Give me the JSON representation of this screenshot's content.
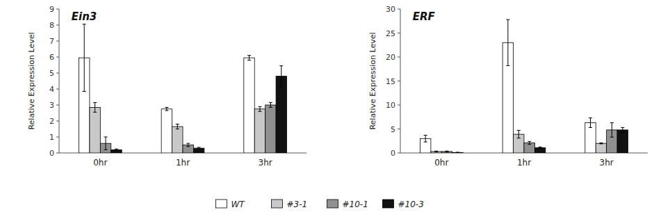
{
  "chart_data": [
    {
      "type": "bar",
      "title": "Ein3",
      "y_label": "Relative Expression Level",
      "categories": [
        "0hr",
        "1hr",
        "3hr"
      ],
      "series": [
        {
          "name": "WT",
          "color": "#ffffff",
          "values": [
            5.95,
            2.75,
            5.95
          ],
          "errors": [
            2.1,
            0.1,
            0.15
          ]
        },
        {
          "name": "#3-1",
          "color": "#c8c8c8",
          "values": [
            2.85,
            1.65,
            2.75
          ],
          "errors": [
            0.3,
            0.15,
            0.15
          ]
        },
        {
          "name": "#10-1",
          "color": "#909090",
          "values": [
            0.6,
            0.5,
            3.0
          ],
          "errors": [
            0.4,
            0.1,
            0.15
          ]
        },
        {
          "name": "#10-3",
          "color": "#111111",
          "values": [
            0.2,
            0.3,
            4.8
          ],
          "errors": [
            0.05,
            0.05,
            0.65
          ]
        }
      ],
      "ylim": [
        0,
        9
      ],
      "yticks": [
        0,
        1,
        2,
        3,
        4,
        5,
        6,
        7,
        8,
        9
      ],
      "grid": false,
      "legend": "bottom"
    },
    {
      "type": "bar",
      "title": "ERF",
      "y_label": "Relative Expression Level",
      "categories": [
        "0hr",
        "1hr",
        "3hr"
      ],
      "series": [
        {
          "name": "WT",
          "color": "#ffffff",
          "values": [
            3.0,
            23.0,
            6.3
          ],
          "errors": [
            0.7,
            4.8,
            1.0
          ]
        },
        {
          "name": "#3-1",
          "color": "#c8c8c8",
          "values": [
            0.3,
            3.9,
            2.0
          ],
          "errors": [
            0.1,
            0.8,
            0.1
          ]
        },
        {
          "name": "#10-1",
          "color": "#909090",
          "values": [
            0.3,
            2.1,
            4.8
          ],
          "errors": [
            0.1,
            0.3,
            1.5
          ]
        },
        {
          "name": "#10-3",
          "color": "#111111",
          "values": [
            0.1,
            1.1,
            4.8
          ],
          "errors": [
            0.05,
            0.15,
            0.5
          ]
        }
      ],
      "ylim": [
        0,
        30
      ],
      "yticks": [
        0,
        5,
        10,
        15,
        20,
        25,
        30
      ],
      "grid": false
    }
  ]
}
